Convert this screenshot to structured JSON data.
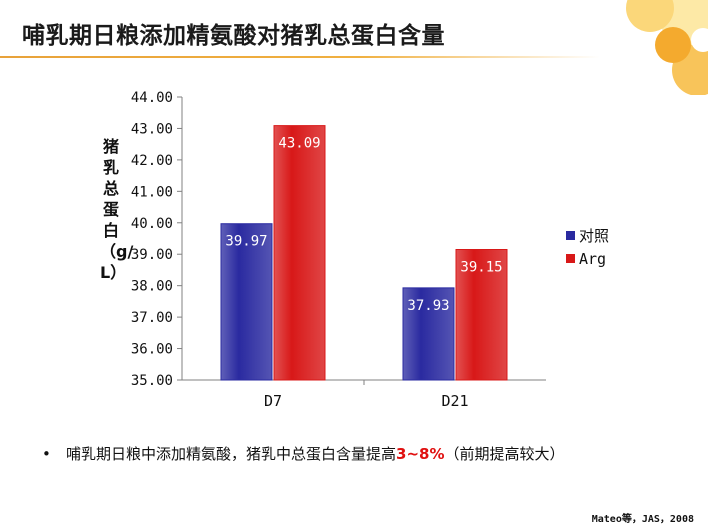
{
  "title": "哺乳期日粮添加精氨酸对猪乳总蛋白含量",
  "chart_data": {
    "type": "bar",
    "categories": [
      "D7",
      "D21"
    ],
    "series": [
      {
        "name": "对照",
        "values": [
          39.97,
          37.93
        ],
        "color": "#2a2aa0"
      },
      {
        "name": "Arg",
        "values": [
          43.09,
          39.15
        ],
        "color": "#d81818"
      }
    ],
    "data_labels": [
      [
        "39.97",
        "37.93"
      ],
      [
        "43.09",
        "39.15"
      ]
    ],
    "ylabel": "猪乳总蛋白（g/L）",
    "ylim": [
      35.0,
      44.0
    ],
    "yticks": [
      "35.00",
      "36.00",
      "37.00",
      "38.00",
      "39.00",
      "40.00",
      "41.00",
      "42.00",
      "43.00",
      "44.00"
    ],
    "legend": "right",
    "grid": false
  },
  "bullet": {
    "marker": "•",
    "before": "哺乳期日粮中添加精氨酸，猪乳中总蛋白含量提高",
    "highlight": "3~8%",
    "after": "（前期提高较大）"
  },
  "citation": "Mateo等，JAS，2008"
}
